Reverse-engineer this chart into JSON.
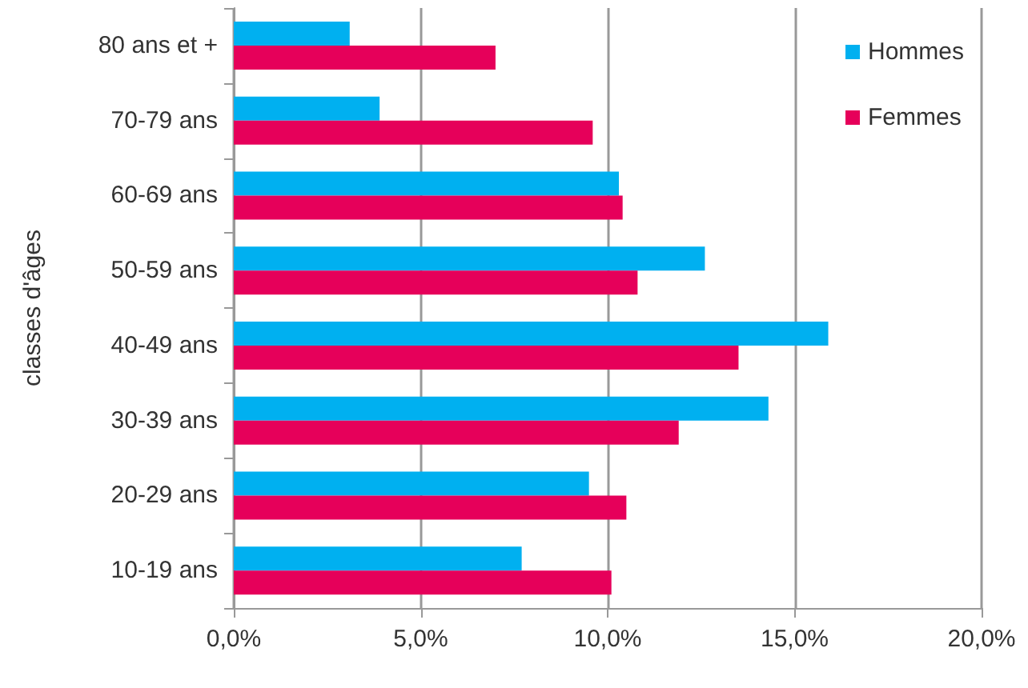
{
  "chart_data": {
    "type": "bar",
    "orientation": "horizontal",
    "ylabel": "classes d'âges",
    "categories": [
      "80 ans et +",
      "70-79 ans",
      "60-69 ans",
      "50-59 ans",
      "40-49 ans",
      "30-39 ans",
      "20-29 ans",
      "10-19 ans"
    ],
    "series": [
      {
        "name": "Hommes",
        "color": "#00b0f0",
        "values": [
          3.1,
          3.9,
          10.3,
          12.6,
          15.9,
          14.3,
          9.5,
          7.7
        ]
      },
      {
        "name": "Femmes",
        "color": "#e6005a",
        "values": [
          7.0,
          9.6,
          10.4,
          10.8,
          13.5,
          11.9,
          10.5,
          10.1
        ]
      }
    ],
    "xlim": [
      0,
      20
    ],
    "xticks": [
      {
        "value": 0,
        "label": "0,0%"
      },
      {
        "value": 5,
        "label": "5,0%"
      },
      {
        "value": 10,
        "label": "10,0%"
      },
      {
        "value": 15,
        "label": "15,0%"
      },
      {
        "value": 20,
        "label": "20,0%"
      }
    ],
    "grid": "x",
    "legend": "top right"
  }
}
